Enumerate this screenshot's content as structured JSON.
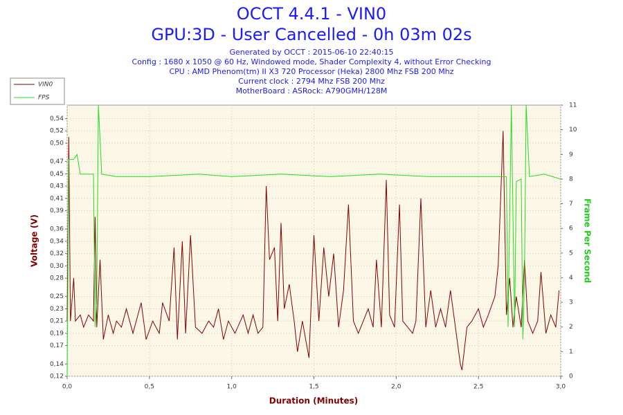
{
  "chart_data": {
    "type": "line",
    "title": "OCCT 4.4.1 - VIN0",
    "subtitle": "GPU:3D - User Cancelled - 0h 03m 02s",
    "info": [
      "Generated by OCCT : 2015-06-10 22:40:15",
      "Config : 1680 x 1050 @ 60 Hz, Windowed mode, Shader Complexity 4, without Error Checking",
      "CPU : AMD Phenom(tm) II X3 720 Processor (Heka) 2800 Mhz FSB 200 Mhz",
      "Current clock : 2794 Mhz FSB 200 Mhz",
      "MotherBoard : ASRock: A790GMH/128M"
    ],
    "x_label": "Duration (Minutes)",
    "y_label": "Voltage (V)",
    "y2_label": "Frame Per Second",
    "xlim": [
      0,
      3.0
    ],
    "xticks": [
      {
        "value": 0,
        "label": "0,0"
      },
      {
        "value": 0.5,
        "label": "0,5"
      },
      {
        "value": 1.0,
        "label": "1,0"
      },
      {
        "value": 1.5,
        "label": "1,5"
      },
      {
        "value": 2.0,
        "label": "2,0"
      },
      {
        "value": 2.5,
        "label": "2,5"
      },
      {
        "value": 3.0,
        "label": "3,0"
      }
    ],
    "ylim": [
      0.12,
      0.562
    ],
    "yticks": [
      {
        "value": 0.12,
        "label": "0,12"
      },
      {
        "value": 0.14,
        "label": "0,14"
      },
      {
        "value": 0.17,
        "label": "0,17"
      },
      {
        "value": 0.19,
        "label": "0,19"
      },
      {
        "value": 0.21,
        "label": "0,21"
      },
      {
        "value": 0.23,
        "label": "0,23"
      },
      {
        "value": 0.25,
        "label": "0,25"
      },
      {
        "value": 0.28,
        "label": "0,28"
      },
      {
        "value": 0.3,
        "label": "0,30"
      },
      {
        "value": 0.32,
        "label": "0,32"
      },
      {
        "value": 0.34,
        "label": "0,34"
      },
      {
        "value": 0.36,
        "label": "0,36"
      },
      {
        "value": 0.39,
        "label": "0,39"
      },
      {
        "value": 0.41,
        "label": "0,41"
      },
      {
        "value": 0.43,
        "label": "0,43"
      },
      {
        "value": 0.45,
        "label": "0,45"
      },
      {
        "value": 0.47,
        "label": "0,47"
      },
      {
        "value": 0.5,
        "label": "0,50"
      },
      {
        "value": 0.52,
        "label": "0,52"
      },
      {
        "value": 0.54,
        "label": "0,54"
      }
    ],
    "y2lim": [
      0,
      11
    ],
    "y2ticks": [
      0,
      1,
      2,
      3,
      4,
      5,
      6,
      7,
      8,
      9,
      10,
      11
    ],
    "grid": true,
    "legend": "top-left",
    "series": [
      {
        "name": "VIN0",
        "color": "#800000",
        "x": [
          0.0,
          0.01,
          0.02,
          0.04,
          0.05,
          0.08,
          0.1,
          0.13,
          0.16,
          0.17,
          0.18,
          0.2,
          0.22,
          0.25,
          0.28,
          0.3,
          0.33,
          0.36,
          0.4,
          0.45,
          0.48,
          0.52,
          0.56,
          0.58,
          0.62,
          0.65,
          0.67,
          0.7,
          0.72,
          0.75,
          0.78,
          0.82,
          0.86,
          0.89,
          0.92,
          0.95,
          0.98,
          1.02,
          1.07,
          1.1,
          1.13,
          1.16,
          1.19,
          1.21,
          1.23,
          1.26,
          1.28,
          1.3,
          1.32,
          1.35,
          1.38,
          1.4,
          1.43,
          1.47,
          1.5,
          1.53,
          1.56,
          1.59,
          1.62,
          1.65,
          1.68,
          1.71,
          1.74,
          1.77,
          1.8,
          1.83,
          1.86,
          1.88,
          1.91,
          1.94,
          1.96,
          1.99,
          2.02,
          2.04,
          2.07,
          2.1,
          2.12,
          2.15,
          2.18,
          2.21,
          2.24,
          2.27,
          2.3,
          2.33,
          2.36,
          2.39,
          2.4,
          2.43,
          2.46,
          2.5,
          2.53,
          2.56,
          2.6,
          2.62,
          2.65,
          2.67,
          2.69,
          2.71,
          2.73,
          2.76,
          2.78,
          2.8,
          2.83,
          2.86,
          2.88,
          2.91,
          2.94,
          2.97,
          2.99
        ],
        "values": [
          0.21,
          0.51,
          0.21,
          0.28,
          0.21,
          0.22,
          0.2,
          0.22,
          0.21,
          0.38,
          0.2,
          0.31,
          0.18,
          0.22,
          0.19,
          0.21,
          0.2,
          0.23,
          0.19,
          0.24,
          0.18,
          0.21,
          0.19,
          0.24,
          0.21,
          0.33,
          0.18,
          0.34,
          0.19,
          0.35,
          0.2,
          0.19,
          0.21,
          0.2,
          0.23,
          0.18,
          0.21,
          0.19,
          0.22,
          0.19,
          0.22,
          0.19,
          0.2,
          0.43,
          0.31,
          0.33,
          0.21,
          0.37,
          0.23,
          0.27,
          0.21,
          0.16,
          0.21,
          0.15,
          0.35,
          0.21,
          0.33,
          0.25,
          0.32,
          0.2,
          0.26,
          0.4,
          0.21,
          0.19,
          0.21,
          0.23,
          0.2,
          0.31,
          0.2,
          0.44,
          0.22,
          0.2,
          0.4,
          0.21,
          0.2,
          0.19,
          0.21,
          0.41,
          0.2,
          0.26,
          0.2,
          0.23,
          0.2,
          0.26,
          0.2,
          0.14,
          0.13,
          0.2,
          0.21,
          0.23,
          0.2,
          0.22,
          0.25,
          0.3,
          0.52,
          0.22,
          0.28,
          0.2,
          0.25,
          0.2,
          0.31,
          0.21,
          0.19,
          0.21,
          0.29,
          0.19,
          0.22,
          0.2,
          0.26
        ]
      },
      {
        "name": "FPS",
        "color": "#22dd22",
        "axis": "y2",
        "x": [
          0.0,
          0.01,
          0.04,
          0.06,
          0.08,
          0.16,
          0.17,
          0.18,
          0.19,
          0.21,
          0.3,
          0.5,
          0.8,
          1.0,
          1.3,
          1.6,
          1.9,
          2.2,
          2.5,
          2.6,
          2.67,
          2.68,
          2.7,
          2.72,
          2.73,
          2.76,
          2.77,
          2.78,
          2.79,
          2.81,
          2.9,
          3.0
        ],
        "values": [
          0,
          8.8,
          8.8,
          9.0,
          8.2,
          8.2,
          2.0,
          3.0,
          11.0,
          8.2,
          8.1,
          8.1,
          8.2,
          8.1,
          8.2,
          8.1,
          8.2,
          8.1,
          8.1,
          8.1,
          8.1,
          2.0,
          11.0,
          2.0,
          7.9,
          8.0,
          1.5,
          4.0,
          11.0,
          8.1,
          8.2,
          8.0
        ]
      }
    ]
  }
}
